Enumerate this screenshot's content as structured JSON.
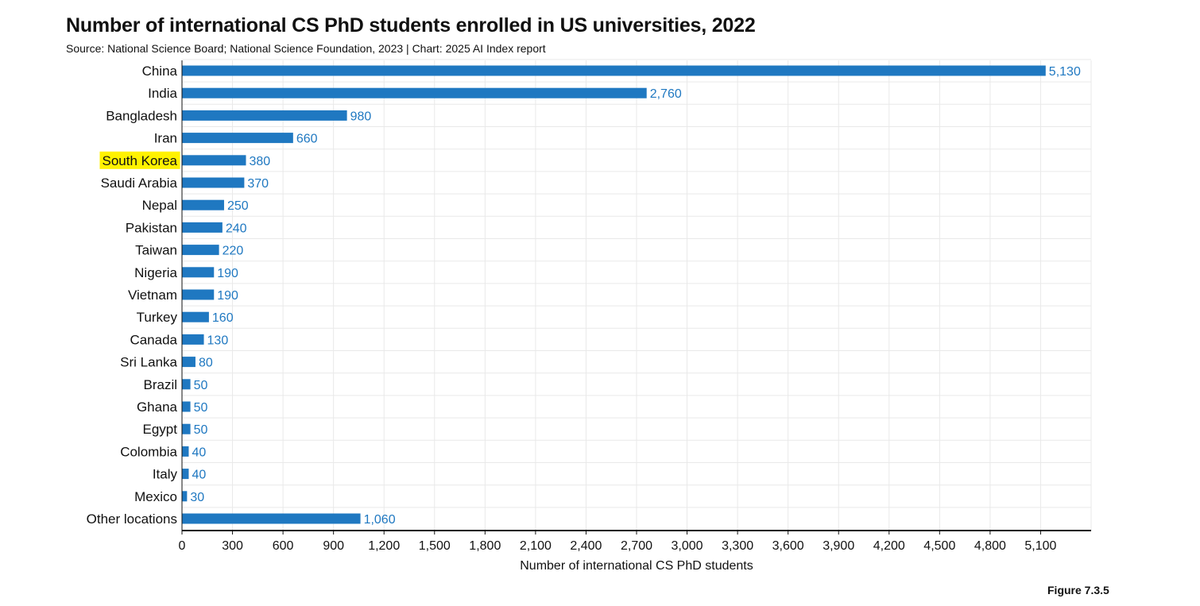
{
  "title": "Number of international CS PhD students enrolled in US universities, 2022",
  "subtitle": "Source: National Science Board; National Science Foundation, 2023 | Chart: 2025 AI Index report",
  "figure_label": "Figure 7.3.5",
  "colors": {
    "bar": "#1f78c1",
    "value_label": "#1f78c1",
    "highlight": "#fff200",
    "grid": "#e9e9e9",
    "axis": "#111111"
  },
  "chart_data": {
    "type": "bar",
    "orientation": "horizontal",
    "title": "Number of international CS PhD students enrolled in US universities, 2022",
    "xlabel": "Number of international CS PhD students",
    "ylabel": "",
    "categories": [
      "China",
      "India",
      "Bangladesh",
      "Iran",
      "South Korea",
      "Saudi Arabia",
      "Nepal",
      "Pakistan",
      "Taiwan",
      "Nigeria",
      "Vietnam",
      "Turkey",
      "Canada",
      "Sri Lanka",
      "Brazil",
      "Ghana",
      "Egypt",
      "Colombia",
      "Italy",
      "Mexico",
      "Other locations"
    ],
    "values": [
      5130,
      2760,
      980,
      660,
      380,
      370,
      250,
      240,
      220,
      190,
      190,
      160,
      130,
      80,
      50,
      50,
      50,
      40,
      40,
      30,
      1060
    ],
    "value_labels": [
      "5,130",
      "2,760",
      "980",
      "660",
      "380",
      "370",
      "250",
      "240",
      "220",
      "190",
      "190",
      "160",
      "130",
      "80",
      "50",
      "50",
      "50",
      "40",
      "40",
      "30",
      "1,060"
    ],
    "highlighted_category": "South Korea",
    "xlim": [
      0,
      5400
    ],
    "xticks": [
      0,
      300,
      600,
      900,
      1200,
      1500,
      1800,
      2100,
      2400,
      2700,
      3000,
      3300,
      3600,
      3900,
      4200,
      4500,
      4800,
      5100
    ],
    "xtick_labels": [
      "0",
      "300",
      "600",
      "900",
      "1,200",
      "1,500",
      "1,800",
      "2,100",
      "2,400",
      "2,700",
      "3,000",
      "3,300",
      "3,600",
      "3,900",
      "4,200",
      "4,500",
      "4,800",
      "5,100"
    ],
    "grid": true
  }
}
